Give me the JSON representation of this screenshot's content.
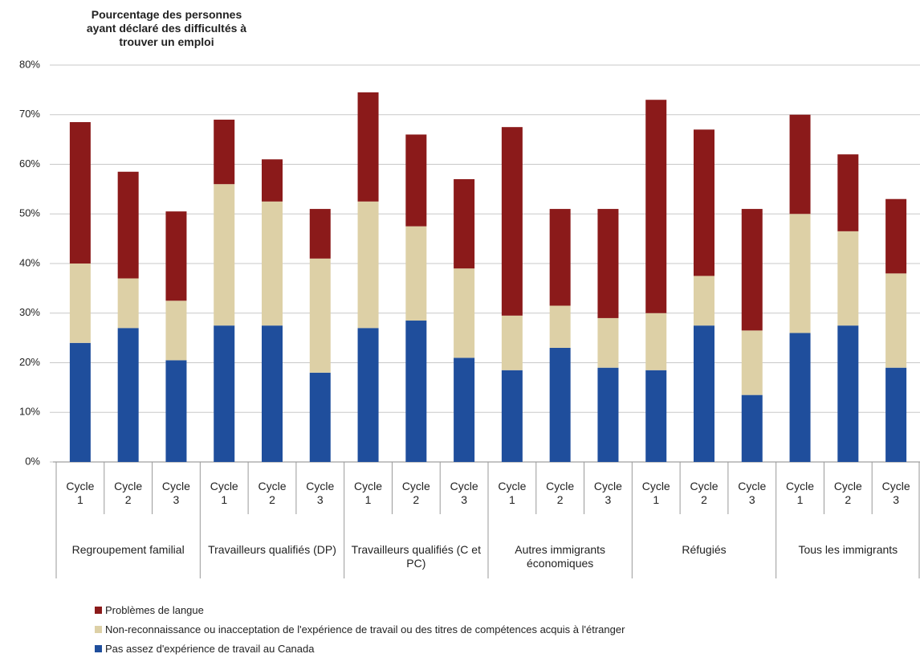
{
  "chart_data": {
    "type": "stacked_bar",
    "title": "Pourcentage des personnes ayant déclaré des difficultés à trouver un emploi",
    "categories": [
      "Cycle 1",
      "Cycle 2",
      "Cycle 3",
      "Cycle 1",
      "Cycle 2",
      "Cycle 3",
      "Cycle 1",
      "Cycle 2",
      "Cycle 3",
      "Cycle 1",
      "Cycle 2",
      "Cycle 3",
      "Cycle 1",
      "Cycle 2",
      "Cycle 3",
      "Cycle 1",
      "Cycle 2",
      "Cycle 3"
    ],
    "groups": [
      "Regroupement familial",
      "Travailleurs qualifiés (DP)",
      "Travailleurs qualifiés (C et PC)",
      "Autres immigrants économiques",
      "Réfugiés",
      "Tous les immigrants"
    ],
    "series": [
      {
        "name": "Pas assez d'expérience de travail au Canada",
        "color": "#1f4e9c",
        "values": [
          24,
          27,
          20.5,
          27.5,
          27.5,
          18,
          27,
          28.5,
          21,
          18.5,
          23,
          19,
          18.5,
          27.5,
          13.5,
          26,
          27.5,
          19
        ]
      },
      {
        "name": "Non-reconnaissance ou inacceptation de l'expérience de travail ou des titres de compétences acquis à l'étranger",
        "color": "#ddd0a6",
        "values": [
          16,
          10,
          12,
          28.5,
          25,
          23,
          25.5,
          19,
          18,
          11,
          8.5,
          10,
          11.5,
          10,
          13,
          24,
          19,
          19
        ]
      },
      {
        "name": "Problèmes de langue",
        "color": "#8b1a1a",
        "values": [
          28.5,
          21.5,
          18,
          13,
          8.5,
          10,
          22,
          18.5,
          18,
          38,
          19.5,
          22,
          43,
          29.5,
          24.5,
          20,
          15.5,
          15
        ]
      }
    ],
    "ylim": [
      0,
      80
    ],
    "yticks": [
      {
        "value": 0,
        "label": "0%"
      },
      {
        "value": 10,
        "label": "10%"
      },
      {
        "value": 20,
        "label": "20%"
      },
      {
        "value": 30,
        "label": "30%"
      },
      {
        "value": 40,
        "label": "40%"
      },
      {
        "value": 50,
        "label": "50%"
      },
      {
        "value": 60,
        "label": "60%"
      },
      {
        "value": 70,
        "label": "70%"
      },
      {
        "value": 80,
        "label": "80%"
      }
    ],
    "grid": true
  }
}
